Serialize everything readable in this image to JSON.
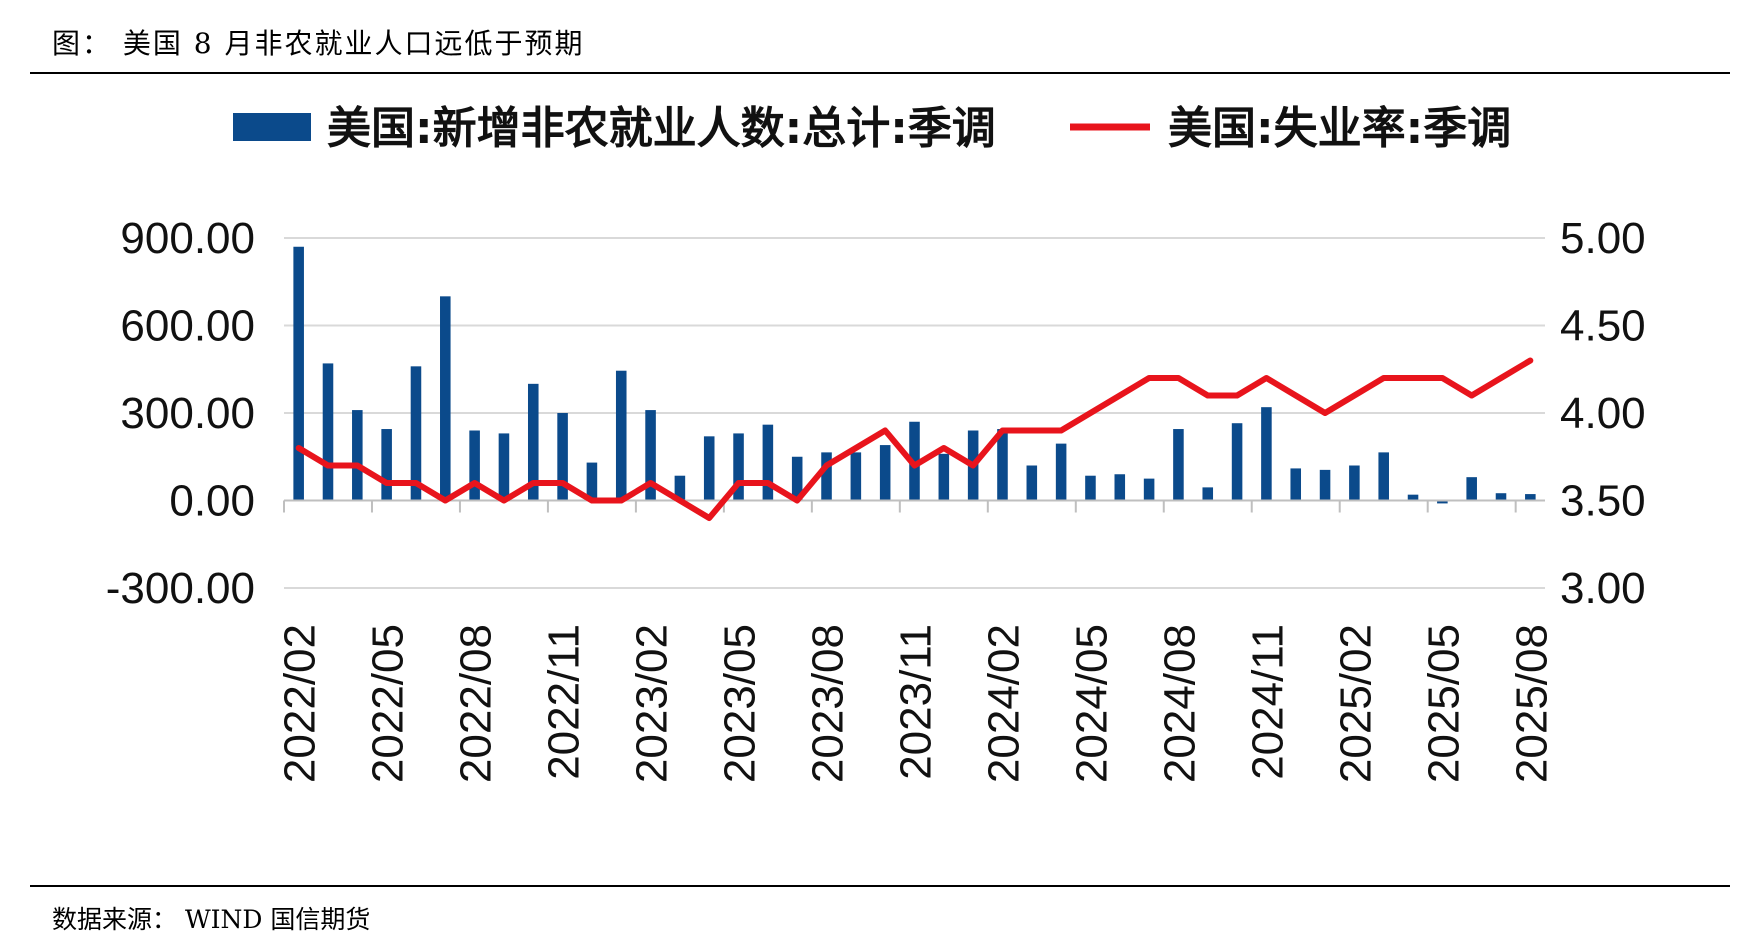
{
  "figure": {
    "title": "图： 美国 8 月非农就业人口远低于预期",
    "source": "数据来源： WIND 国信期货"
  },
  "colors": {
    "bar": "#0b4a8b",
    "line": "#e8141c",
    "grid": "#d9d9d9",
    "axis": "#bfbfbf"
  },
  "chart_data": {
    "type": "bar+line",
    "legend_position": "top",
    "grid": true,
    "dates": [
      "2022/02",
      "2022/03",
      "2022/04",
      "2022/05",
      "2022/06",
      "2022/07",
      "2022/08",
      "2022/09",
      "2022/10",
      "2022/11",
      "2022/12",
      "2023/01",
      "2023/02",
      "2023/03",
      "2023/04",
      "2023/05",
      "2023/06",
      "2023/07",
      "2023/08",
      "2023/09",
      "2023/10",
      "2023/11",
      "2023/12",
      "2024/01",
      "2024/02",
      "2024/03",
      "2024/04",
      "2024/05",
      "2024/06",
      "2024/07",
      "2024/08",
      "2024/09",
      "2024/10",
      "2024/11",
      "2024/12",
      "2025/01",
      "2025/02",
      "2025/03",
      "2025/04",
      "2025/05",
      "2025/06",
      "2025/07",
      "2025/08"
    ],
    "x_tick_labels": [
      "2022/02",
      "2022/05",
      "2022/08",
      "2022/11",
      "2023/02",
      "2023/05",
      "2023/08",
      "2023/11",
      "2024/02",
      "2024/05",
      "2024/08",
      "2024/11",
      "2025/02",
      "2025/05",
      "2025/08"
    ],
    "series": [
      {
        "name": "美国:新增非农就业人数:总计:季调",
        "type": "bar",
        "axis": "left",
        "values": [
          870,
          470,
          310,
          245,
          460,
          700,
          240,
          230,
          400,
          300,
          130,
          445,
          310,
          85,
          220,
          230,
          260,
          150,
          165,
          165,
          190,
          270,
          160,
          240,
          245,
          120,
          195,
          85,
          90,
          75,
          245,
          45,
          265,
          320,
          110,
          105,
          120,
          165,
          20,
          -10,
          80,
          25,
          22
        ]
      },
      {
        "name": "美国:失业率:季调",
        "type": "line",
        "axis": "right",
        "values": [
          3.8,
          3.7,
          3.7,
          3.6,
          3.6,
          3.5,
          3.6,
          3.5,
          3.6,
          3.6,
          3.5,
          3.5,
          3.6,
          3.5,
          3.4,
          3.6,
          3.6,
          3.5,
          3.7,
          3.8,
          3.9,
          3.7,
          3.8,
          3.7,
          3.9,
          3.9,
          3.9,
          4.0,
          4.1,
          4.2,
          4.2,
          4.1,
          4.1,
          4.2,
          4.1,
          4.0,
          4.1,
          4.2,
          4.2,
          4.2,
          4.1,
          4.2,
          4.3
        ]
      }
    ],
    "y_left": {
      "range": [
        -300,
        900
      ],
      "ticks": [
        "900.00",
        "600.00",
        "300.00",
        "0.00",
        "-300.00"
      ]
    },
    "y_right": {
      "range": [
        3.0,
        5.0
      ],
      "ticks": [
        "5.00",
        "4.50",
        "4.00",
        "3.50",
        "3.00"
      ]
    }
  }
}
